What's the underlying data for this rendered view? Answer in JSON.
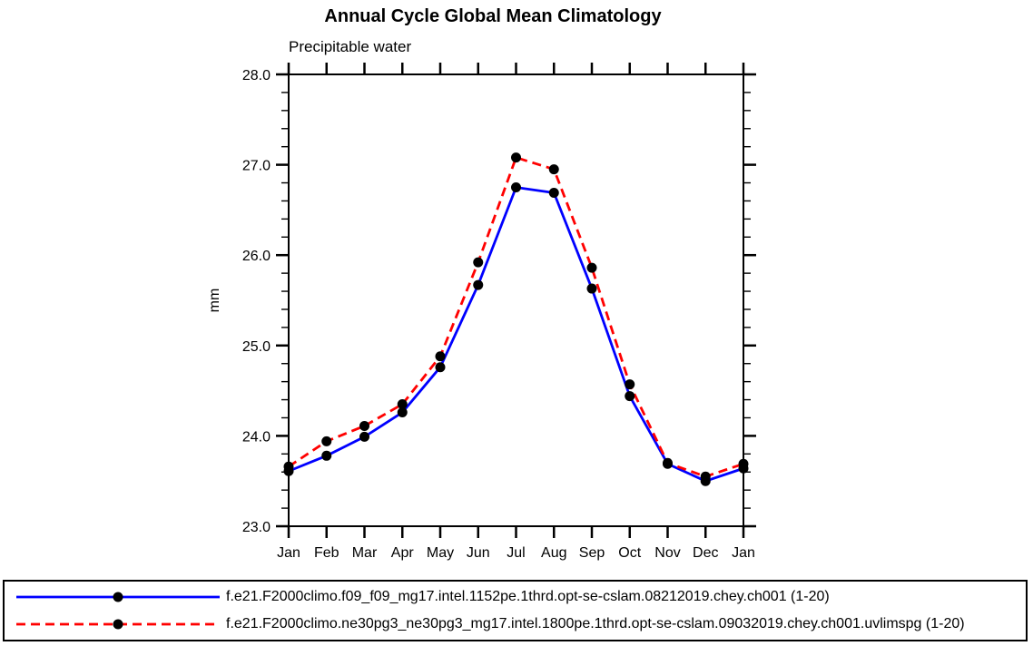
{
  "page": {
    "background": "#ffffff"
  },
  "chart_data": {
    "type": "line",
    "title": "Annual Cycle Global Mean Climatology",
    "subtitle": "Precipitable water",
    "xlabel": "",
    "ylabel": "mm",
    "categories": [
      "Jan",
      "Feb",
      "Mar",
      "Apr",
      "May",
      "Jun",
      "Jul",
      "Aug",
      "Sep",
      "Oct",
      "Nov",
      "Dec",
      "Jan"
    ],
    "ylim": [
      23.0,
      28.0
    ],
    "ytick_major_interval": 1.0,
    "ytick_minor_interval": 0.2,
    "ytick_labels": [
      "23.0",
      "24.0",
      "25.0",
      "26.0",
      "27.0",
      "28.0"
    ],
    "grid": false,
    "legend_position": "bottom",
    "axis_color": "#000000",
    "marker_color": "#000000",
    "series": [
      {
        "name": "f.e21.F2000climo.f09_f09_mg17.intel.1152pe.1thrd.opt-se-cslam.08212019.chey.ch001 (1-20)",
        "color": "#0000ff",
        "line_style": "solid",
        "marker": "filled-circle",
        "values": [
          23.61,
          23.78,
          23.99,
          24.26,
          24.76,
          25.67,
          26.75,
          26.69,
          25.63,
          24.44,
          23.69,
          23.5,
          23.64
        ]
      },
      {
        "name": "f.e21.F2000climo.ne30pg3_ne30pg3_mg17.intel.1800pe.1thrd.opt-se-cslam.09032019.chey.ch001.uvlimspg (1-20)",
        "color": "#ff0000",
        "line_style": "dashed",
        "marker": "filled-circle",
        "values": [
          23.66,
          23.94,
          24.11,
          24.35,
          24.88,
          25.92,
          27.08,
          26.95,
          25.86,
          24.57,
          23.7,
          23.55,
          23.69
        ]
      }
    ]
  }
}
